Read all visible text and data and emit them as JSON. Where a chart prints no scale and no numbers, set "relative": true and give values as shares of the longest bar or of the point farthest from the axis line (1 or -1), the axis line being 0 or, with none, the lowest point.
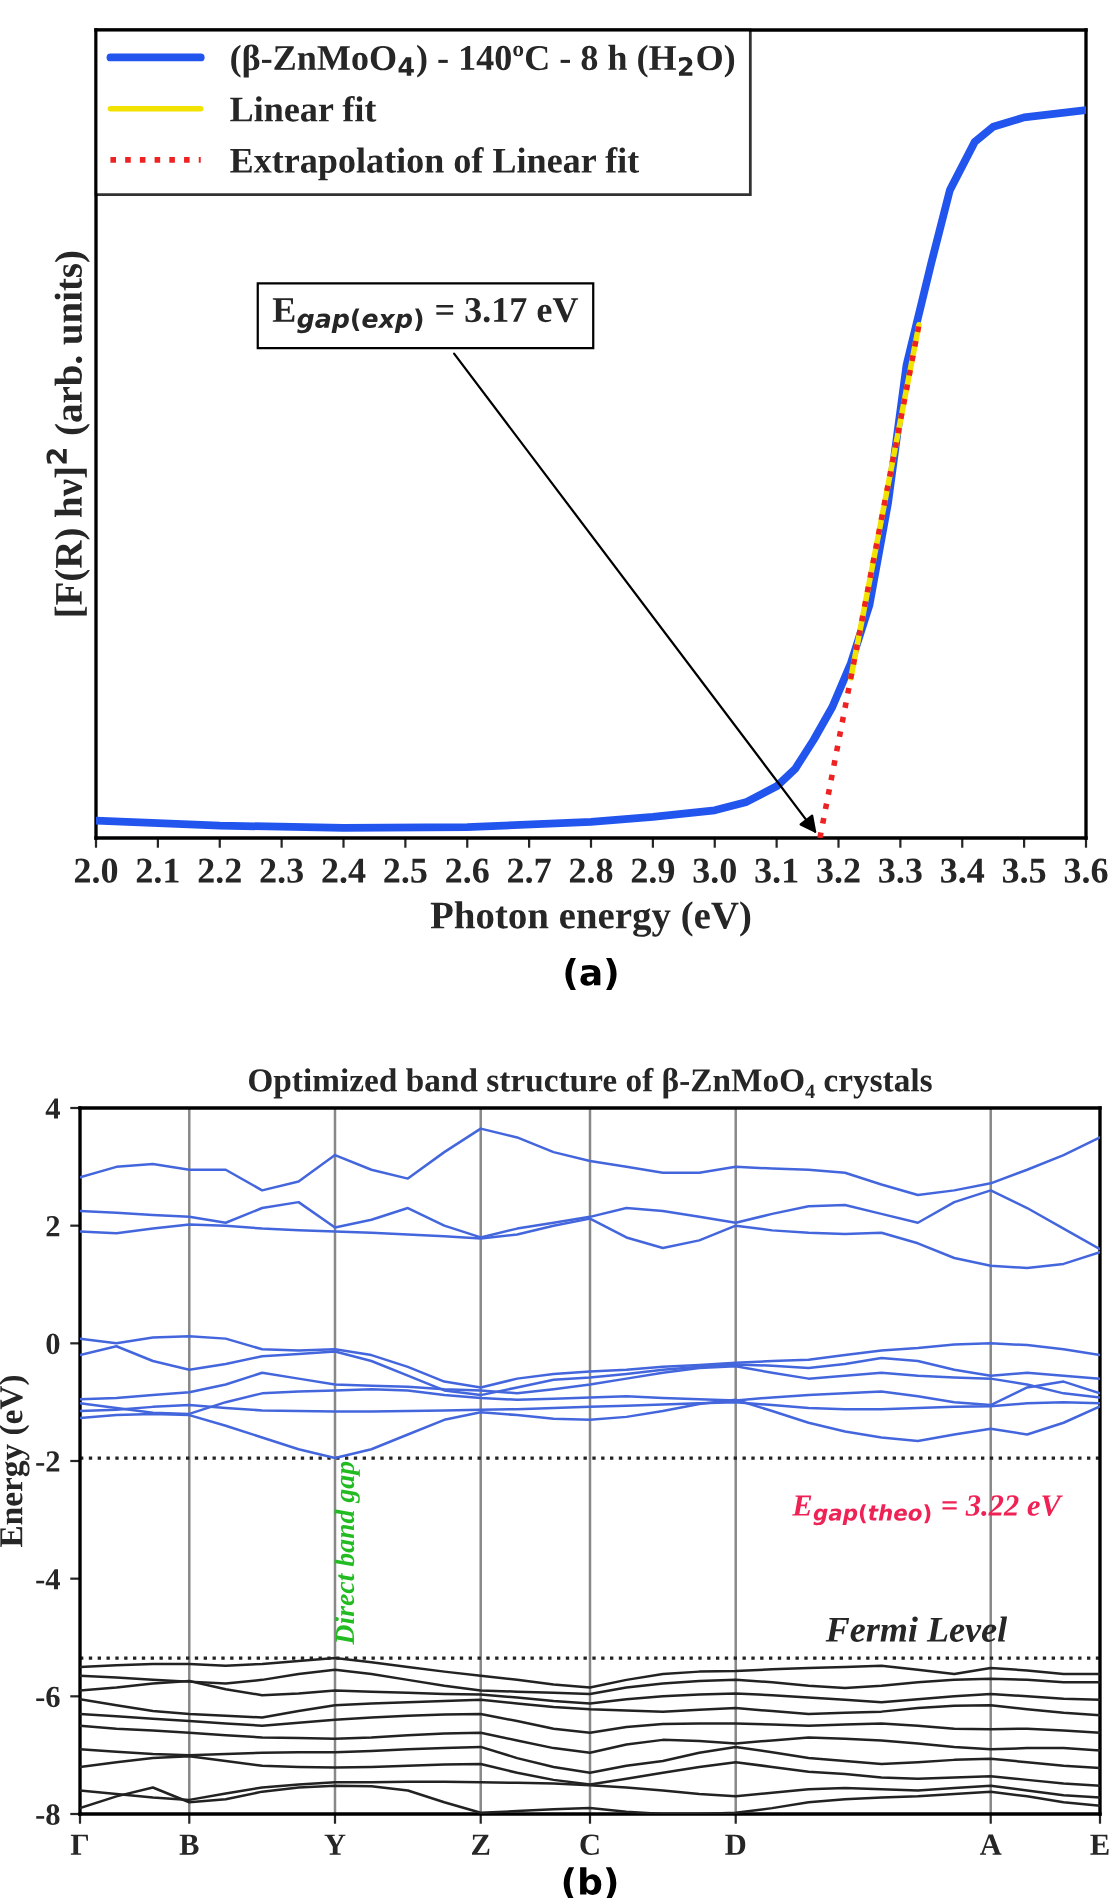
{
  "chart_data": [
    {
      "type": "line",
      "relative": true,
      "xlabel": "Photon energy (eV)",
      "ylabel": "[F(R) hν]$^{2}$ (arb. units)",
      "legend": "top left",
      "grid": false,
      "xlim": [
        2.0,
        3.6
      ],
      "xticks": [
        {
          "value": 2,
          "label": "2.0"
        },
        2.1,
        2.2,
        2.3,
        2.4,
        2.5,
        2.6,
        2.7,
        2.8,
        2.9,
        {
          "value": 3,
          "label": "3.0"
        },
        3.1,
        3.2,
        3.3,
        3.4,
        3.5,
        3.6
      ],
      "series": [
        {
          "name": "(β-ZnMoO$_{4}$) - 140ºC - 8 h (H$_{2}$O)",
          "color": "#2255ee",
          "x": [
            2.0,
            2.2,
            2.4,
            2.6,
            2.8,
            2.9,
            3.0,
            3.05,
            3.1,
            3.13,
            3.16,
            3.19,
            3.22,
            3.25,
            3.28,
            3.31,
            3.35,
            3.38,
            3.42,
            3.45,
            3.5,
            3.6
          ],
          "values": [
            0.024,
            0.017,
            0.014,
            0.015,
            0.022,
            0.029,
            0.038,
            0.049,
            0.071,
            0.095,
            0.135,
            0.18,
            0.24,
            0.32,
            0.46,
            0.65,
            0.79,
            0.89,
            0.956,
            0.977,
            0.99,
            1.0
          ]
        },
        {
          "name": "Linear fit",
          "color": "#f2e200",
          "x": [
            3.22,
            3.33
          ],
          "values": [
            0.22,
            0.705
          ]
        },
        {
          "name": "Extrapolation of Linear fit",
          "color": "#ee2222",
          "line_style": "dotted",
          "x": [
            3.17,
            3.33
          ],
          "values": [
            0.0,
            0.705
          ]
        }
      ],
      "annotations": [
        {
          "text": "E$_{gap(exp)}$ = 3.17 eV",
          "x": 3.17,
          "y": 0.0
        },
        "(a)"
      ]
    },
    {
      "type": "line",
      "title": "Optimized band structure of β-ZnMoO₄ crystals",
      "ylabel": "Energy (eV)",
      "grid": "x",
      "categories": [
        "Γ",
        null,
        null,
        "B",
        null,
        null,
        null,
        "Y",
        null,
        null,
        null,
        "Z",
        null,
        null,
        "C",
        null,
        null,
        null,
        "D",
        null,
        null,
        null,
        null,
        null,
        null,
        "A",
        null,
        null,
        "E"
      ],
      "ylim": [
        -8,
        4
      ],
      "yticks": [
        -8,
        -6,
        -4,
        -2,
        0,
        2,
        4
      ],
      "series": [
        {
          "color": "#4466dd",
          "values": [
            2.82,
            3.0,
            3.05,
            2.95,
            2.95,
            2.6,
            2.75,
            3.2,
            2.95,
            2.8,
            3.25,
            3.65,
            3.5,
            3.25,
            3.1,
            3.0,
            2.9,
            2.9,
            3.0,
            2.97,
            2.95,
            2.9,
            2.7,
            2.52,
            2.6,
            2.72,
            2.95,
            3.2,
            3.5
          ]
        },
        {
          "color": "#4466dd",
          "values": [
            2.25,
            2.22,
            2.18,
            2.15,
            2.05,
            2.3,
            2.4,
            1.97,
            2.1,
            2.3,
            2.0,
            1.8,
            1.95,
            2.05,
            2.15,
            2.3,
            2.25,
            2.15,
            2.05,
            2.2,
            2.33,
            2.35,
            2.2,
            2.05,
            2.4,
            2.6,
            2.3,
            1.95,
            1.6
          ]
        },
        {
          "color": "#4466dd",
          "values": [
            1.9,
            1.87,
            1.95,
            2.02,
            2.0,
            1.95,
            1.92,
            1.9,
            1.88,
            1.85,
            1.82,
            1.78,
            1.85,
            2.0,
            2.12,
            1.8,
            1.62,
            1.75,
            2.0,
            1.92,
            1.88,
            1.86,
            1.88,
            1.7,
            1.45,
            1.32,
            1.28,
            1.35,
            1.55
          ]
        },
        {
          "color": "#4466dd",
          "values": [
            0.08,
            0.0,
            0.1,
            0.12,
            0.08,
            -0.1,
            -0.12,
            -0.1,
            -0.2,
            -0.4,
            -0.65,
            -0.75,
            -0.6,
            -0.52,
            -0.48,
            -0.45,
            -0.4,
            -0.37,
            -0.33,
            -0.3,
            -0.28,
            -0.2,
            -0.12,
            -0.08,
            -0.02,
            0.0,
            -0.03,
            -0.1,
            -0.2
          ]
        },
        {
          "color": "#4466dd",
          "values": [
            -0.2,
            -0.05,
            -0.3,
            -0.45,
            -0.35,
            -0.22,
            -0.18,
            -0.14,
            -0.3,
            -0.55,
            -0.8,
            -0.88,
            -0.75,
            -0.62,
            -0.58,
            -0.52,
            -0.45,
            -0.4,
            -0.36,
            -0.38,
            -0.42,
            -0.35,
            -0.25,
            -0.3,
            -0.45,
            -0.55,
            -0.5,
            -0.55,
            -0.6
          ]
        },
        {
          "color": "#4466dd",
          "values": [
            -0.95,
            -0.93,
            -0.88,
            -0.83,
            -0.7,
            -0.5,
            -0.6,
            -0.7,
            -0.72,
            -0.74,
            -0.78,
            -0.8,
            -0.85,
            -0.78,
            -0.7,
            -0.6,
            -0.5,
            -0.42,
            -0.39,
            -0.5,
            -0.6,
            -0.55,
            -0.5,
            -0.55,
            -0.58,
            -0.6,
            -0.7,
            -0.85,
            -0.92
          ]
        },
        {
          "color": "#4466dd",
          "values": [
            -1.02,
            -1.1,
            -1.18,
            -1.2,
            -1.0,
            -0.85,
            -0.82,
            -0.8,
            -0.78,
            -0.8,
            -0.88,
            -0.93,
            -0.96,
            -0.94,
            -0.92,
            -0.9,
            -0.93,
            -0.95,
            -0.97,
            -0.92,
            -0.88,
            -0.85,
            -0.82,
            -0.9,
            -1.0,
            -1.05,
            -0.75,
            -0.65,
            -0.85
          ]
        },
        {
          "color": "#4466dd",
          "values": [
            -1.15,
            -1.13,
            -1.08,
            -1.05,
            -1.1,
            -1.14,
            -1.15,
            -1.16,
            -1.16,
            -1.15,
            -1.14,
            -1.13,
            -1.12,
            -1.1,
            -1.08,
            -1.06,
            -1.04,
            -1.02,
            -1.0,
            -1.05,
            -1.1,
            -1.12,
            -1.12,
            -1.1,
            -1.08,
            -1.07,
            -1.02,
            -1.0,
            -1.02
          ]
        },
        {
          "color": "#4466dd",
          "values": [
            -1.27,
            -1.22,
            -1.2,
            -1.22,
            -1.4,
            -1.6,
            -1.8,
            -1.95,
            -1.8,
            -1.55,
            -1.3,
            -1.17,
            -1.22,
            -1.28,
            -1.3,
            -1.25,
            -1.15,
            -1.03,
            -0.96,
            -1.15,
            -1.35,
            -1.5,
            -1.6,
            -1.66,
            -1.55,
            -1.45,
            -1.55,
            -1.35,
            -1.07
          ]
        },
        {
          "color": "#222222",
          "values": [
            -5.5,
            -5.47,
            -5.45,
            -5.45,
            -5.48,
            -5.45,
            -5.4,
            -5.35,
            -5.42,
            -5.5,
            -5.58,
            -5.65,
            -5.72,
            -5.8,
            -5.85,
            -5.72,
            -5.62,
            -5.58,
            -5.57,
            -5.54,
            -5.52,
            -5.5,
            -5.48,
            -5.55,
            -5.62,
            -5.52,
            -5.56,
            -5.62,
            -5.62
          ]
        },
        {
          "color": "#222222",
          "values": [
            -5.65,
            -5.68,
            -5.72,
            -5.75,
            -5.78,
            -5.72,
            -5.62,
            -5.55,
            -5.62,
            -5.72,
            -5.82,
            -5.9,
            -5.92,
            -5.94,
            -5.96,
            -5.85,
            -5.78,
            -5.74,
            -5.72,
            -5.76,
            -5.82,
            -5.86,
            -5.82,
            -5.76,
            -5.72,
            -5.7,
            -5.72,
            -5.76,
            -5.76
          ]
        },
        {
          "color": "#222222",
          "values": [
            -5.9,
            -5.85,
            -5.78,
            -5.74,
            -5.88,
            -5.98,
            -5.95,
            -5.9,
            -5.92,
            -5.94,
            -5.96,
            -5.97,
            -6.02,
            -6.08,
            -6.12,
            -6.05,
            -6.0,
            -5.97,
            -5.95,
            -5.98,
            -6.02,
            -6.06,
            -6.1,
            -6.05,
            -6.0,
            -5.96,
            -6.0,
            -6.04,
            -6.06
          ]
        },
        {
          "color": "#222222",
          "values": [
            -6.05,
            -6.15,
            -6.25,
            -6.3,
            -6.33,
            -6.36,
            -6.25,
            -6.15,
            -6.12,
            -6.1,
            -6.08,
            -6.06,
            -6.12,
            -6.18,
            -6.22,
            -6.24,
            -6.26,
            -6.23,
            -6.2,
            -6.25,
            -6.3,
            -6.28,
            -6.26,
            -6.2,
            -6.16,
            -6.15,
            -6.22,
            -6.28,
            -6.32
          ]
        },
        {
          "color": "#222222",
          "values": [
            -6.3,
            -6.34,
            -6.38,
            -6.42,
            -6.46,
            -6.5,
            -6.45,
            -6.4,
            -6.36,
            -6.33,
            -6.31,
            -6.3,
            -6.42,
            -6.55,
            -6.62,
            -6.52,
            -6.47,
            -6.46,
            -6.46,
            -6.48,
            -6.5,
            -6.48,
            -6.46,
            -6.5,
            -6.55,
            -6.56,
            -6.55,
            -6.58,
            -6.62
          ]
        },
        {
          "color": "#222222",
          "values": [
            -6.5,
            -6.55,
            -6.58,
            -6.62,
            -6.66,
            -6.7,
            -6.71,
            -6.72,
            -6.7,
            -6.66,
            -6.63,
            -6.62,
            -6.75,
            -6.88,
            -6.96,
            -6.82,
            -6.74,
            -6.76,
            -6.8,
            -6.75,
            -6.7,
            -6.72,
            -6.75,
            -6.8,
            -6.86,
            -6.9,
            -6.88,
            -6.88,
            -6.92
          ]
        },
        {
          "color": "#222222",
          "values": [
            -6.9,
            -6.94,
            -6.98,
            -7.0,
            -6.98,
            -6.96,
            -6.95,
            -6.95,
            -6.93,
            -6.9,
            -6.88,
            -6.86,
            -7.05,
            -7.2,
            -7.3,
            -7.18,
            -7.1,
            -6.96,
            -6.86,
            -6.95,
            -7.05,
            -7.1,
            -7.15,
            -7.12,
            -7.08,
            -7.06,
            -7.12,
            -7.18,
            -7.22
          ]
        },
        {
          "color": "#222222",
          "values": [
            -7.2,
            -7.12,
            -7.05,
            -7.02,
            -7.1,
            -7.18,
            -7.2,
            -7.21,
            -7.2,
            -7.18,
            -7.16,
            -7.15,
            -7.3,
            -7.42,
            -7.5,
            -7.4,
            -7.3,
            -7.2,
            -7.12,
            -7.2,
            -7.28,
            -7.32,
            -7.38,
            -7.4,
            -7.38,
            -7.36,
            -7.42,
            -7.48,
            -7.52
          ]
        },
        {
          "color": "#222222",
          "values": [
            -7.6,
            -7.66,
            -7.72,
            -7.76,
            -7.65,
            -7.55,
            -7.5,
            -7.46,
            -7.46,
            -7.45,
            -7.45,
            -7.46,
            -7.47,
            -7.48,
            -7.51,
            -7.55,
            -7.6,
            -7.66,
            -7.7,
            -7.64,
            -7.58,
            -7.56,
            -7.58,
            -7.6,
            -7.56,
            -7.52,
            -7.6,
            -7.68,
            -7.72
          ]
        },
        {
          "color": "#222222",
          "values": [
            -7.9,
            -7.7,
            -7.55,
            -7.8,
            -7.75,
            -7.62,
            -7.55,
            -7.52,
            -7.53,
            -7.6,
            -7.8,
            -7.98,
            -7.95,
            -7.92,
            -7.9,
            -7.96,
            -8.0,
            -8.0,
            -7.98,
            -7.9,
            -7.8,
            -7.75,
            -7.72,
            -7.7,
            -7.66,
            -7.62,
            -7.7,
            -7.8,
            -7.86
          ]
        }
      ],
      "ref_lines": [
        {
          "axis": "y",
          "value": -1.95,
          "color": "#222222",
          "line_style": "dotted"
        },
        {
          "axis": "y",
          "value": -5.35,
          "label": "Fermi Level",
          "color": "#222222",
          "line_style": "dotted"
        }
      ],
      "annotations": [
        "Direct band gap",
        "E$_{gap(theo)}$ = 3.22 eV",
        "(b)"
      ]
    }
  ]
}
